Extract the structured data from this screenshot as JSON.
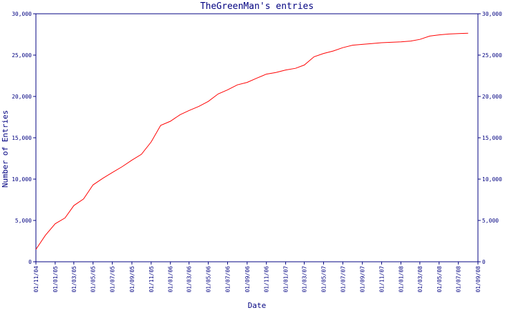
{
  "chart_data": {
    "type": "line",
    "title": "TheGreenMan's entries",
    "xlabel": "Date",
    "ylabel": "Number of Entries",
    "ylim": [
      0,
      30000
    ],
    "yticks": [
      0,
      5000,
      10000,
      15000,
      20000,
      25000,
      30000
    ],
    "ytick_labels": [
      "0",
      "5,000",
      "10,000",
      "15,000",
      "20,000",
      "25,000",
      "30,000"
    ],
    "xticks": [
      "01/11/04",
      "01/01/05",
      "01/03/05",
      "01/05/05",
      "01/07/05",
      "01/09/05",
      "01/11/05",
      "01/01/06",
      "01/03/06",
      "01/05/06",
      "01/07/06",
      "01/09/06",
      "01/11/06",
      "01/01/07",
      "01/03/07",
      "01/05/07",
      "01/07/07",
      "01/09/07",
      "01/11/07",
      "01/01/08",
      "01/03/08",
      "01/05/08",
      "01/07/08",
      "01/09/08"
    ],
    "right_axis": true,
    "grid": false,
    "line_color": "#ff0000",
    "axis_color": "#000080",
    "series": [
      {
        "x": [
          "01/11/04",
          "01/12/04",
          "01/01/05",
          "01/02/05",
          "01/03/05",
          "01/04/05",
          "01/05/05",
          "01/06/05",
          "01/07/05",
          "01/08/05",
          "01/09/05",
          "01/10/05",
          "01/11/05",
          "01/12/05",
          "01/01/06",
          "01/02/06",
          "01/03/06",
          "01/04/06",
          "01/05/06",
          "01/06/06",
          "01/07/06",
          "01/08/06",
          "01/09/06",
          "01/10/06",
          "01/11/06",
          "01/12/06",
          "01/01/07",
          "01/02/07",
          "01/03/07",
          "01/04/07",
          "01/05/07",
          "01/06/07",
          "01/07/07",
          "01/08/07",
          "01/09/07",
          "01/10/07",
          "01/11/07",
          "01/12/07",
          "01/01/08",
          "01/02/08",
          "01/03/08",
          "01/04/08",
          "01/05/08",
          "01/06/08",
          "01/07/08",
          "01/08/08"
        ],
        "values": [
          1500,
          3200,
          4600,
          5300,
          6800,
          7600,
          9300,
          10100,
          10800,
          11500,
          12300,
          13000,
          14500,
          16500,
          17000,
          17800,
          18300,
          18800,
          19400,
          20300,
          20800,
          21400,
          21700,
          22200,
          22700,
          22900,
          23200,
          23400,
          23800,
          24800,
          25200,
          25500,
          25900,
          26200,
          26300,
          26400,
          26500,
          26550,
          26600,
          26700,
          26900,
          27300,
          27450,
          27550,
          27600,
          27650
        ]
      }
    ]
  }
}
